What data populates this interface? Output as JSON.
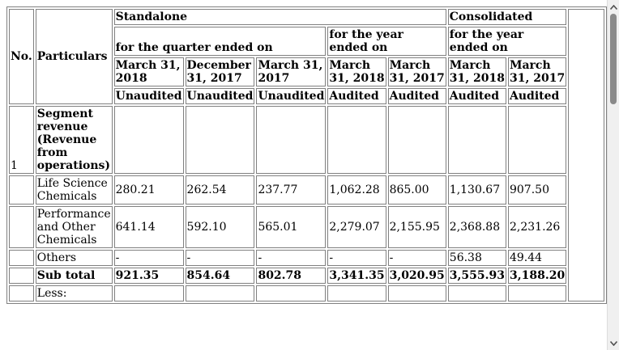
{
  "table": {
    "col_no": "No.",
    "col_particulars": "Particulars",
    "standalone": "Standalone",
    "consolidated": "Consolidated",
    "quarter_ended": "for the quarter ended on",
    "year_ended": "for the year ended on",
    "cons_year_ended": "for the year ended on",
    "periods": [
      "March 31, 2018",
      "December 31, 2017",
      "March 31, 2017",
      "March 31, 2018",
      "March 31, 2017",
      "March 31, 2018",
      "March 31, 2017"
    ],
    "audit_status": [
      "Unaudited",
      "Unaudited",
      "Unaudited",
      "Audited",
      "Audited",
      "Audited",
      "Audited"
    ],
    "rows": [
      {
        "no": "1",
        "label": "Segment revenue (Revenue from operations)",
        "values": [
          "",
          "",
          "",
          "",
          "",
          "",
          ""
        ],
        "bold": true
      },
      {
        "no": "",
        "label": "Life Science Chemicals",
        "values": [
          "280.21",
          "262.54",
          "237.77",
          "1,062.28",
          "865.00",
          "1,130.67",
          "907.50"
        ],
        "bold": false
      },
      {
        "no": "",
        "label": "Performance and Other Chemicals",
        "values": [
          "641.14",
          "592.10",
          "565.01",
          "2,279.07",
          "2,155.95",
          "2,368.88",
          "2,231.26"
        ],
        "bold": false
      },
      {
        "no": "",
        "label": "Others",
        "values": [
          "-",
          "-",
          "-",
          "-",
          "-",
          "56.38",
          "49.44"
        ],
        "bold": false
      },
      {
        "no": "",
        "label": "Sub total",
        "values": [
          "921.35",
          "854.64",
          "802.78",
          "3,341.35",
          "3,020.95",
          "3,555.93",
          "3,188.20"
        ],
        "bold": true
      },
      {
        "no": "",
        "label": "Less:",
        "values": [
          "",
          "",
          "",
          "",
          "",
          "",
          ""
        ],
        "bold": false
      }
    ]
  }
}
